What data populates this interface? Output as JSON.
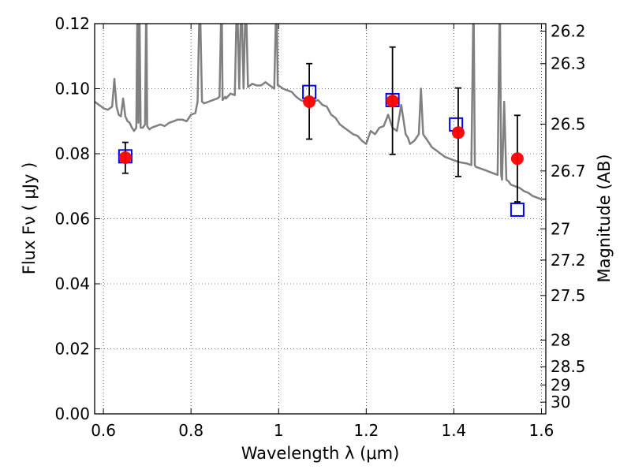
{
  "chart_data": {
    "type": "scatter",
    "xlabel": "Wavelength  λ (μm)",
    "ylabel": "Flux  Fν  ( μJy )",
    "y2label": "Magnitude (AB)",
    "xlim": [
      0.58,
      1.61
    ],
    "ylim": [
      0.0,
      0.12
    ],
    "grid": true,
    "x_ticks": [
      {
        "value": 0.6,
        "label": "0.6"
      },
      {
        "value": 0.8,
        "label": "0.8"
      },
      {
        "value": 1.0,
        "label": "1"
      },
      {
        "value": 1.2,
        "label": "1.2"
      },
      {
        "value": 1.4,
        "label": "1.4"
      },
      {
        "value": 1.6,
        "label": "1.6"
      }
    ],
    "y_ticks": [
      {
        "value": 0.0,
        "label": "0.00"
      },
      {
        "value": 0.02,
        "label": "0.02"
      },
      {
        "value": 0.04,
        "label": "0.04"
      },
      {
        "value": 0.06,
        "label": "0.06"
      },
      {
        "value": 0.08,
        "label": "0.08"
      },
      {
        "value": 0.1,
        "label": "0.10"
      },
      {
        "value": 0.12,
        "label": "0.12"
      }
    ],
    "mag_ticks": [
      {
        "flux": 0.1177,
        "label": "26.2"
      },
      {
        "flux": 0.1077,
        "label": "26.3"
      },
      {
        "flux": 0.0891,
        "label": "26.5"
      },
      {
        "flux": 0.0747,
        "label": "26.7"
      },
      {
        "flux": 0.0569,
        "label": "27"
      },
      {
        "flux": 0.0473,
        "label": "27.2"
      },
      {
        "flux": 0.0364,
        "label": "27.5"
      },
      {
        "flux": 0.0227,
        "label": "28"
      },
      {
        "flux": 0.0145,
        "label": "28.5"
      },
      {
        "flux": 0.0089,
        "label": "29"
      },
      {
        "flux": 0.0036,
        "label": "30"
      }
    ],
    "observed": {
      "color": "#ff0000",
      "points": [
        {
          "x": 0.65,
          "y": 0.0788,
          "yerr_low": 0.074,
          "yerr_high": 0.0835
        },
        {
          "x": 1.07,
          "y": 0.096,
          "yerr_low": 0.0845,
          "yerr_high": 0.1077
        },
        {
          "x": 1.26,
          "y": 0.0962,
          "yerr_low": 0.0798,
          "yerr_high": 0.1128
        },
        {
          "x": 1.41,
          "y": 0.0865,
          "yerr_low": 0.073,
          "yerr_high": 0.1002
        },
        {
          "x": 1.545,
          "y": 0.0785,
          "yerr_low": 0.0652,
          "yerr_high": 0.0918
        }
      ]
    },
    "model": {
      "color": "#0000ff",
      "points": [
        {
          "x": 0.65,
          "y": 0.0792
        },
        {
          "x": 1.07,
          "y": 0.099
        },
        {
          "x": 1.26,
          "y": 0.0965
        },
        {
          "x": 1.405,
          "y": 0.089
        },
        {
          "x": 1.545,
          "y": 0.0628
        }
      ]
    },
    "spectrum": {
      "color": "#808080",
      "x": [
        0.58,
        0.6,
        0.61,
        0.62,
        0.625,
        0.63,
        0.635,
        0.64,
        0.645,
        0.65,
        0.655,
        0.66,
        0.665,
        0.67,
        0.675,
        0.678,
        0.68,
        0.682,
        0.685,
        0.69,
        0.695,
        0.698,
        0.7,
        0.702,
        0.705,
        0.71,
        0.72,
        0.73,
        0.74,
        0.75,
        0.76,
        0.77,
        0.78,
        0.79,
        0.8,
        0.81,
        0.815,
        0.82,
        0.825,
        0.83,
        0.84,
        0.85,
        0.86,
        0.865,
        0.87,
        0.872,
        0.875,
        0.878,
        0.88,
        0.89,
        0.9,
        0.905,
        0.91,
        0.915,
        0.92,
        0.925,
        0.93,
        0.935,
        0.94,
        0.95,
        0.96,
        0.97,
        0.98,
        0.99,
        0.995,
        0.998,
        1.0,
        1.005,
        1.01,
        1.02,
        1.03,
        1.04,
        1.05,
        1.06,
        1.07,
        1.08,
        1.09,
        1.1,
        1.11,
        1.12,
        1.13,
        1.14,
        1.15,
        1.16,
        1.17,
        1.18,
        1.19,
        1.2,
        1.21,
        1.22,
        1.23,
        1.24,
        1.25,
        1.26,
        1.27,
        1.28,
        1.29,
        1.295,
        1.3,
        1.31,
        1.32,
        1.325,
        1.33,
        1.34,
        1.35,
        1.36,
        1.37,
        1.38,
        1.39,
        1.4,
        1.41,
        1.42,
        1.43,
        1.44,
        1.445,
        1.448,
        1.45,
        1.46,
        1.47,
        1.48,
        1.49,
        1.5,
        1.505,
        1.508,
        1.51,
        1.515,
        1.52,
        1.525,
        1.53,
        1.54,
        1.55,
        1.56,
        1.57,
        1.58,
        1.59,
        1.6,
        1.61
      ],
      "y": [
        0.096,
        0.094,
        0.0935,
        0.0945,
        0.103,
        0.0945,
        0.092,
        0.0915,
        0.097,
        0.0915,
        0.09,
        0.0895,
        0.088,
        0.087,
        0.088,
        0.13,
        0.0895,
        0.13,
        0.088,
        0.088,
        0.089,
        0.13,
        0.0885,
        0.088,
        0.0875,
        0.088,
        0.0885,
        0.089,
        0.0885,
        0.0895,
        0.09,
        0.0905,
        0.0905,
        0.09,
        0.092,
        0.0925,
        0.096,
        0.13,
        0.096,
        0.0955,
        0.096,
        0.0965,
        0.097,
        0.0975,
        0.13,
        0.0965,
        0.097,
        0.0975,
        0.097,
        0.0985,
        0.098,
        0.13,
        0.1,
        0.13,
        0.1,
        0.13,
        0.1005,
        0.101,
        0.1015,
        0.101,
        0.101,
        0.102,
        0.101,
        0.1,
        0.13,
        0.101,
        0.101,
        0.1005,
        0.1,
        0.0995,
        0.099,
        0.0975,
        0.0965,
        0.096,
        0.0965,
        0.096,
        0.0965,
        0.095,
        0.0945,
        0.092,
        0.091,
        0.089,
        0.088,
        0.087,
        0.086,
        0.0855,
        0.084,
        0.083,
        0.087,
        0.086,
        0.088,
        0.0885,
        0.092,
        0.088,
        0.087,
        0.095,
        0.086,
        0.085,
        0.083,
        0.084,
        0.086,
        0.1,
        0.086,
        0.084,
        0.082,
        0.081,
        0.08,
        0.079,
        0.0785,
        0.078,
        0.0775,
        0.0772,
        0.077,
        0.0765,
        0.13,
        0.0765,
        0.076,
        0.0755,
        0.075,
        0.0745,
        0.074,
        0.0735,
        0.13,
        0.0735,
        0.072,
        0.096,
        0.072,
        0.0715,
        0.0705,
        0.07,
        0.0695,
        0.0685,
        0.068,
        0.067,
        0.0665,
        0.066,
        0.066
      ]
    }
  }
}
